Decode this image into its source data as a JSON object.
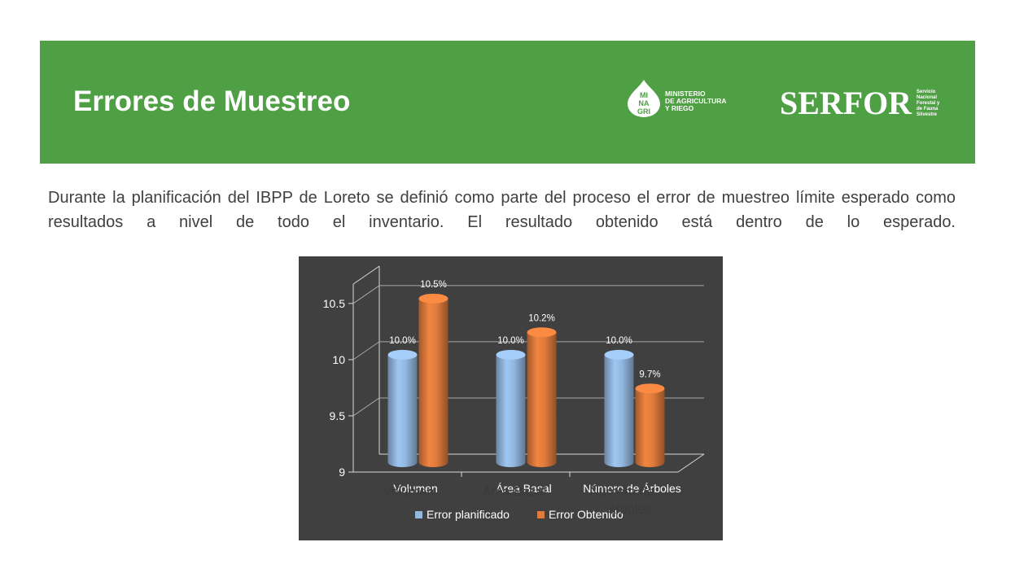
{
  "header": {
    "title": "Errores de Muestreo",
    "logo_minagri": {
      "mark_text": [
        "MI",
        "NA",
        "GRI"
      ],
      "lines": [
        "MINISTERIO",
        "DE AGRICULTURA",
        "Y RIEGO"
      ]
    },
    "logo_serfor": {
      "name": "SERFOR",
      "lines": [
        "Servicio",
        "Nacional",
        "Forestal y",
        "de Fauna",
        "Silvestre"
      ]
    },
    "bg_color": "#4f9f45"
  },
  "body": {
    "paragraph": "Durante la planificación del IBPP de Loreto se definió como parte del proceso el error de muestreo límite esperado como resultados a nivel de todo el inventario. El resultado obtenido está dentro de lo esperado."
  },
  "chart_data": {
    "type": "bar",
    "categories": [
      "Volumen",
      "Área Basal",
      "Número de Árboles"
    ],
    "series": [
      {
        "name": "Error planificado",
        "values": [
          10.0,
          10.0,
          10.0
        ],
        "labels": [
          "10.0%",
          "10.0%",
          "10.0%"
        ],
        "color": "#93b8e0"
      },
      {
        "name": "Error Obtenido",
        "values": [
          10.5,
          10.2,
          9.7
        ],
        "labels": [
          "10.5%",
          "10.2%",
          "9.7%"
        ],
        "color": "#e07b3c"
      }
    ],
    "y_ticks": [
      "9",
      "9.5",
      "10",
      "10.5"
    ],
    "ylim": [
      9,
      10.6
    ],
    "grid": true,
    "legend": "bottom",
    "overlay_categories": [
      "Volumen",
      "Área Basal",
      "Número de",
      "árboles"
    ]
  }
}
